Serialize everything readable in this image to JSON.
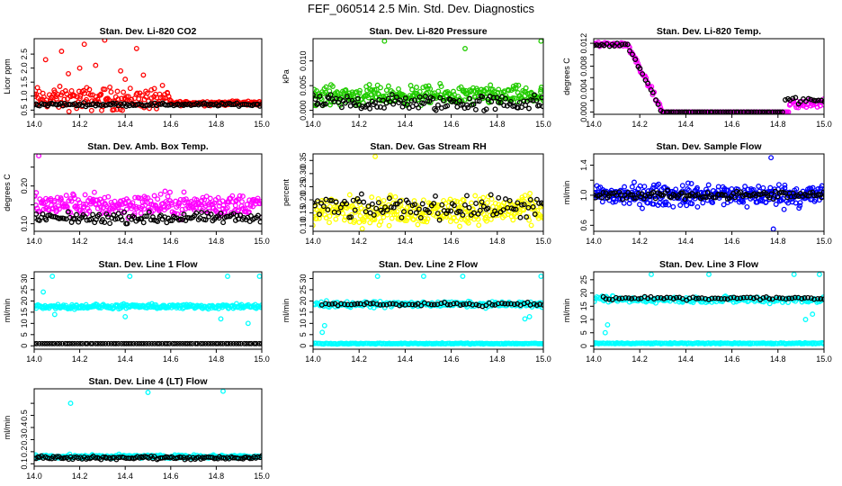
{
  "page_title": "FEF_060514  2.5 Min. Std. Dev. Diagnostics",
  "colors": {
    "black": "#000000",
    "red": "#ff0000",
    "green": "#22cc00",
    "magenta": "#ff00ff",
    "yellow": "#ffff00",
    "blue": "#0000ff",
    "cyan": "#00ffff"
  },
  "chart_data": [
    {
      "type": "scatter",
      "title": "Stan. Dev. Li-820 CO2",
      "ylabel": "Licor ppm",
      "xlim": [
        14.0,
        15.0
      ],
      "ylim": [
        0.35,
        3.05
      ],
      "x_ticks": [
        "14.0",
        "14.2",
        "14.4",
        "14.6",
        "14.8",
        "15.0"
      ],
      "y_ticks": [
        0.5,
        1.0,
        1.5,
        2.0,
        2.5
      ],
      "y_tick_labels": [
        "0.5",
        "1.0",
        "1.5",
        "2.0",
        "2.5"
      ],
      "series": [
        {
          "color": "red",
          "x_range": [
            14.0,
            15.0
          ],
          "count": 260,
          "segments": [
            {
              "until": 14.6,
              "base": 0.9,
              "spread": 0.6,
              "outliers": [
                [
                  14.05,
                  2.3
                ],
                [
                  14.12,
                  2.6
                ],
                [
                  14.22,
                  2.85
                ],
                [
                  14.31,
                  3.0
                ],
                [
                  14.27,
                  2.1
                ],
                [
                  14.38,
                  1.9
                ],
                [
                  14.45,
                  2.7
                ],
                [
                  14.48,
                  1.75
                ],
                [
                  14.2,
                  2.0
                ],
                [
                  14.15,
                  1.8
                ],
                [
                  14.4,
                  1.6
                ]
              ]
            },
            {
              "until": 15.0,
              "base": 0.75,
              "spread": 0.12
            }
          ]
        },
        {
          "color": "black",
          "x_range": [
            14.0,
            15.0
          ],
          "count": 120,
          "segments": [
            {
              "until": 15.0,
              "base": 0.7,
              "spread": 0.08
            }
          ]
        }
      ]
    },
    {
      "type": "scatter",
      "title": "Stan. Dev. Li-820 Pressure",
      "ylabel": "kPa",
      "xlim": [
        14.0,
        15.0
      ],
      "ylim": [
        -0.0008,
        0.0145
      ],
      "x_ticks": [
        "14.0",
        "14.2",
        "14.4",
        "14.6",
        "14.8",
        "15.0"
      ],
      "y_ticks": [
        0.0,
        0.005,
        0.01
      ],
      "y_tick_labels": [
        "0.000",
        "0.005",
        "0.010"
      ],
      "series": [
        {
          "color": "green",
          "x_range": [
            14.0,
            15.0
          ],
          "count": 300,
          "segments": [
            {
              "until": 15.0,
              "base": 0.003,
              "spread": 0.0028,
              "outliers": [
                [
                  14.31,
                  0.014
                ],
                [
                  14.66,
                  0.0125
                ],
                [
                  14.99,
                  0.014
                ]
              ]
            }
          ]
        },
        {
          "color": "black",
          "x_range": [
            14.0,
            15.0
          ],
          "count": 130,
          "segments": [
            {
              "until": 15.0,
              "base": 0.0015,
              "spread": 0.0025
            }
          ]
        }
      ]
    },
    {
      "type": "scatter",
      "title": "Stan. Dev. Li-820 Temp.",
      "ylabel": "degrees C",
      "xlim": [
        14.0,
        15.0
      ],
      "ylim": [
        -0.0004,
        0.0128
      ],
      "x_ticks": [
        "14.0",
        "14.2",
        "14.4",
        "14.6",
        "14.8",
        "15.0"
      ],
      "y_ticks": [
        0.0,
        0.002,
        0.004,
        0.006,
        0.008,
        0.01,
        0.012
      ],
      "y_tick_labels": [
        "0.000",
        "",
        "0.004",
        "",
        "0.008",
        "",
        "0.012"
      ],
      "series": [
        {
          "color": "magenta",
          "x_range": [
            14.0,
            15.0
          ],
          "count": 240,
          "segments": [
            {
              "until": 14.15,
              "base": 0.0118,
              "spread": 0.0005
            },
            {
              "until": 14.3,
              "base": "ramp",
              "from": 0.0115,
              "to": 0.0,
              "spread": 0.0008
            },
            {
              "until": 14.85,
              "base": 0.0,
              "spread": 0.0
            },
            {
              "until": 15.0,
              "base": 0.0015,
              "spread": 0.0012
            }
          ]
        },
        {
          "color": "black",
          "x_range": [
            14.0,
            15.0
          ],
          "count": 90,
          "segments": [
            {
              "until": 14.15,
              "base": 0.0118,
              "spread": 0.0005
            },
            {
              "until": 14.3,
              "base": "ramp",
              "from": 0.0115,
              "to": 0.0,
              "spread": 0.0008
            },
            {
              "until": 14.82,
              "base": 0.0,
              "spread": 0.0
            },
            {
              "until": 15.0,
              "base": 0.002,
              "spread": 0.0008
            }
          ]
        }
      ]
    },
    {
      "type": "scatter",
      "title": "Stan. Dev. Amb. Box Temp.",
      "ylabel": "degrees C",
      "xlim": [
        14.0,
        15.0
      ],
      "ylim": [
        0.08,
        0.285
      ],
      "x_ticks": [
        "14.0",
        "14.2",
        "14.4",
        "14.6",
        "14.8",
        "15.0"
      ],
      "y_ticks": [
        0.1,
        0.15,
        0.2,
        0.25
      ],
      "y_tick_labels": [
        "0.10",
        "",
        "0.20",
        ""
      ],
      "series": [
        {
          "color": "magenta",
          "x_range": [
            14.0,
            15.0
          ],
          "count": 300,
          "segments": [
            {
              "until": 15.0,
              "base": 0.15,
              "spread": 0.045,
              "outliers": [
                [
                  14.02,
                  0.28
                ]
              ]
            }
          ]
        },
        {
          "color": "black",
          "x_range": [
            14.0,
            15.0
          ],
          "count": 130,
          "segments": [
            {
              "until": 15.0,
              "base": 0.115,
              "spread": 0.02
            }
          ]
        }
      ]
    },
    {
      "type": "scatter",
      "title": "Stan. Dev. Gas Stream RH",
      "ylabel": "percent",
      "xlim": [
        14.0,
        15.0
      ],
      "ylim": [
        0.08,
        0.375
      ],
      "x_ticks": [
        "14.0",
        "14.2",
        "14.4",
        "14.6",
        "14.8",
        "15.0"
      ],
      "y_ticks": [
        0.1,
        0.15,
        0.2,
        0.25,
        0.3,
        0.35
      ],
      "y_tick_labels": [
        "0.10",
        "0.15",
        "0.20",
        "0.25",
        "0.30",
        "0.35"
      ],
      "series": [
        {
          "color": "yellow",
          "x_range": [
            14.0,
            15.0
          ],
          "count": 320,
          "segments": [
            {
              "until": 15.0,
              "base": 0.16,
              "spread": 0.08,
              "outliers": [
                [
                  14.27,
                  0.365
                ]
              ]
            }
          ]
        },
        {
          "color": "black",
          "x_range": [
            14.0,
            15.0
          ],
          "count": 110,
          "segments": [
            {
              "until": 15.0,
              "base": 0.17,
              "spread": 0.06
            }
          ]
        }
      ]
    },
    {
      "type": "scatter",
      "title": "Stan. Dev. Sample Flow",
      "ylabel": "ml/min",
      "xlim": [
        14.0,
        15.0
      ],
      "ylim": [
        0.52,
        1.55
      ],
      "x_ticks": [
        "14.0",
        "14.2",
        "14.4",
        "14.6",
        "14.8",
        "15.0"
      ],
      "y_ticks": [
        0.6,
        0.8,
        1.0,
        1.2,
        1.4
      ],
      "y_tick_labels": [
        "0.6",
        "",
        "1.0",
        "",
        "1.4"
      ],
      "series": [
        {
          "color": "blue",
          "x_range": [
            14.0,
            15.0
          ],
          "count": 340,
          "segments": [
            {
              "until": 15.0,
              "base": 1.0,
              "spread": 0.22,
              "outliers": [
                [
                  14.77,
                  1.5
                ],
                [
                  14.78,
                  0.55
                ]
              ]
            }
          ]
        },
        {
          "color": "black",
          "x_range": [
            14.0,
            15.0
          ],
          "count": 120,
          "segments": [
            {
              "until": 15.0,
              "base": 1.0,
              "spread": 0.08
            }
          ]
        }
      ]
    },
    {
      "type": "scatter",
      "title": "Stan. Dev. Line 1 Flow",
      "ylabel": "ml/min",
      "xlim": [
        14.0,
        15.0
      ],
      "ylim": [
        -1.5,
        33
      ],
      "x_ticks": [
        "14.0",
        "14.2",
        "14.4",
        "14.6",
        "14.8",
        "15.0"
      ],
      "y_ticks": [
        0,
        5,
        10,
        15,
        20,
        25,
        30
      ],
      "y_tick_labels": [
        "0",
        "5",
        "10",
        "15",
        "20",
        "25",
        "30"
      ],
      "series": [
        {
          "color": "cyan",
          "x_range": [
            14.0,
            15.0
          ],
          "count": 260,
          "segments": [
            {
              "until": 15.0,
              "base": 17.5,
              "spread": 1.5,
              "outliers": [
                [
                  14.04,
                  24
                ],
                [
                  14.08,
                  31
                ],
                [
                  14.42,
                  31
                ],
                [
                  14.85,
                  31
                ],
                [
                  14.99,
                  31
                ],
                [
                  14.09,
                  14
                ],
                [
                  14.4,
                  13
                ],
                [
                  14.82,
                  12
                ],
                [
                  14.94,
                  10
                ]
              ]
            }
          ]
        },
        {
          "color": "black",
          "x_range": [
            14.0,
            15.0
          ],
          "count": 90,
          "segments": [
            {
              "until": 15.0,
              "base": 1.0,
              "spread": 0.0
            }
          ]
        }
      ]
    },
    {
      "type": "scatter",
      "title": "Stan. Dev. Line 2 Flow",
      "ylabel": "ml/min",
      "xlim": [
        14.0,
        15.0
      ],
      "ylim": [
        -1.5,
        33
      ],
      "x_ticks": [
        "14.0",
        "14.2",
        "14.4",
        "14.6",
        "14.8",
        "15.0"
      ],
      "y_ticks": [
        0,
        5,
        10,
        15,
        20,
        25,
        30
      ],
      "y_tick_labels": [
        "0",
        "5",
        "10",
        "15",
        "20",
        "25",
        "30"
      ],
      "series": [
        {
          "color": "cyan",
          "x_range": [
            14.0,
            15.0
          ],
          "count": 200,
          "segments": [
            {
              "until": 15.0,
              "base": 1.0,
              "spread": 0.3
            }
          ]
        },
        {
          "color": "cyan",
          "x_range": [
            14.0,
            15.0
          ],
          "count": 200,
          "segments": [
            {
              "until": 15.0,
              "base": 18.5,
              "spread": 1.8,
              "outliers": [
                [
                  14.04,
                  6
                ],
                [
                  14.05,
                  9
                ],
                [
                  14.28,
                  31
                ],
                [
                  14.48,
                  31
                ],
                [
                  14.65,
                  31
                ],
                [
                  14.99,
                  31
                ],
                [
                  14.92,
                  12
                ],
                [
                  14.94,
                  13
                ]
              ]
            }
          ]
        },
        {
          "color": "black",
          "x_range": [
            14.04,
            15.0
          ],
          "count": 70,
          "segments": [
            {
              "until": 15.0,
              "base": 18.5,
              "spread": 1.0
            }
          ]
        }
      ]
    },
    {
      "type": "scatter",
      "title": "Stan. Dev. Line 3 Flow",
      "ylabel": "ml/min",
      "xlim": [
        14.0,
        15.0
      ],
      "ylim": [
        -1.2,
        28
      ],
      "x_ticks": [
        "14.0",
        "14.2",
        "14.4",
        "14.6",
        "14.8",
        "15.0"
      ],
      "y_ticks": [
        0,
        5,
        10,
        15,
        20,
        25
      ],
      "y_tick_labels": [
        "0",
        "5",
        "10",
        "15",
        "20",
        "25"
      ],
      "series": [
        {
          "color": "cyan",
          "x_range": [
            14.0,
            15.0
          ],
          "count": 200,
          "segments": [
            {
              "until": 15.0,
              "base": 1.0,
              "spread": 0.3
            }
          ]
        },
        {
          "color": "cyan",
          "x_range": [
            14.0,
            15.0
          ],
          "count": 200,
          "segments": [
            {
              "until": 15.0,
              "base": 17.5,
              "spread": 1.8,
              "outliers": [
                [
                  14.05,
                  5
                ],
                [
                  14.06,
                  8
                ],
                [
                  14.25,
                  27
                ],
                [
                  14.5,
                  27
                ],
                [
                  14.87,
                  27
                ],
                [
                  14.98,
                  27
                ],
                [
                  14.92,
                  10
                ],
                [
                  14.95,
                  12
                ]
              ]
            }
          ]
        },
        {
          "color": "black",
          "x_range": [
            14.04,
            15.0
          ],
          "count": 70,
          "segments": [
            {
              "until": 15.0,
              "base": 18.0,
              "spread": 1.0
            }
          ]
        }
      ]
    },
    {
      "type": "scatter",
      "title": "Stan. Dev. Line 4 (LT) Flow",
      "ylabel": "ml/min",
      "xlim": [
        14.0,
        15.0
      ],
      "ylim": [
        0.08,
        0.72
      ],
      "x_ticks": [
        "14.0",
        "14.2",
        "14.4",
        "14.6",
        "14.8",
        "15.0"
      ],
      "y_ticks": [
        0.1,
        0.2,
        0.3,
        0.4,
        0.5,
        0.6
      ],
      "y_tick_labels": [
        "0.1",
        "0.2",
        "0.3",
        "0.4",
        "0.5",
        ""
      ],
      "series": [
        {
          "color": "cyan",
          "x_range": [
            14.0,
            15.0
          ],
          "count": 280,
          "segments": [
            {
              "until": 15.0,
              "base": 0.16,
              "spread": 0.02,
              "outliers": [
                [
                  14.16,
                  0.6
                ],
                [
                  14.5,
                  0.69
                ],
                [
                  14.83,
                  0.7
                ]
              ]
            }
          ]
        },
        {
          "color": "black",
          "x_range": [
            14.0,
            15.0
          ],
          "count": 120,
          "segments": [
            {
              "until": 15.0,
              "base": 0.15,
              "spread": 0.02
            }
          ]
        }
      ]
    }
  ]
}
